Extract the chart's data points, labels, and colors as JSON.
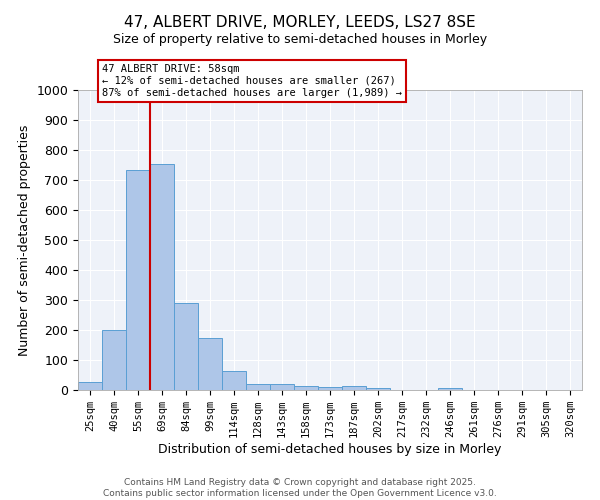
{
  "title_line1": "47, ALBERT DRIVE, MORLEY, LEEDS, LS27 8SE",
  "title_line2": "Size of property relative to semi-detached houses in Morley",
  "xlabel": "Distribution of semi-detached houses by size in Morley",
  "ylabel": "Number of semi-detached properties",
  "categories": [
    "25sqm",
    "40sqm",
    "55sqm",
    "69sqm",
    "84sqm",
    "99sqm",
    "114sqm",
    "128sqm",
    "143sqm",
    "158sqm",
    "173sqm",
    "187sqm",
    "202sqm",
    "217sqm",
    "232sqm",
    "246sqm",
    "261sqm",
    "276sqm",
    "291sqm",
    "305sqm",
    "320sqm"
  ],
  "values": [
    27,
    200,
    735,
    755,
    290,
    175,
    65,
    20,
    20,
    13,
    10,
    13,
    7,
    0,
    0,
    8,
    0,
    0,
    0,
    0,
    0
  ],
  "bar_color": "#aec6e8",
  "bar_edge_color": "#5a9fd4",
  "annotation_title": "47 ALBERT DRIVE: 58sqm",
  "annotation_line1": "← 12% of semi-detached houses are smaller (267)",
  "annotation_line2": "87% of semi-detached houses are larger (1,989) →",
  "annotation_box_color": "#cc0000",
  "ylim": [
    0,
    1000
  ],
  "yticks": [
    0,
    100,
    200,
    300,
    400,
    500,
    600,
    700,
    800,
    900,
    1000
  ],
  "footer_line1": "Contains HM Land Registry data © Crown copyright and database right 2025.",
  "footer_line2": "Contains public sector information licensed under the Open Government Licence v3.0.",
  "background_color": "#eef2f9"
}
